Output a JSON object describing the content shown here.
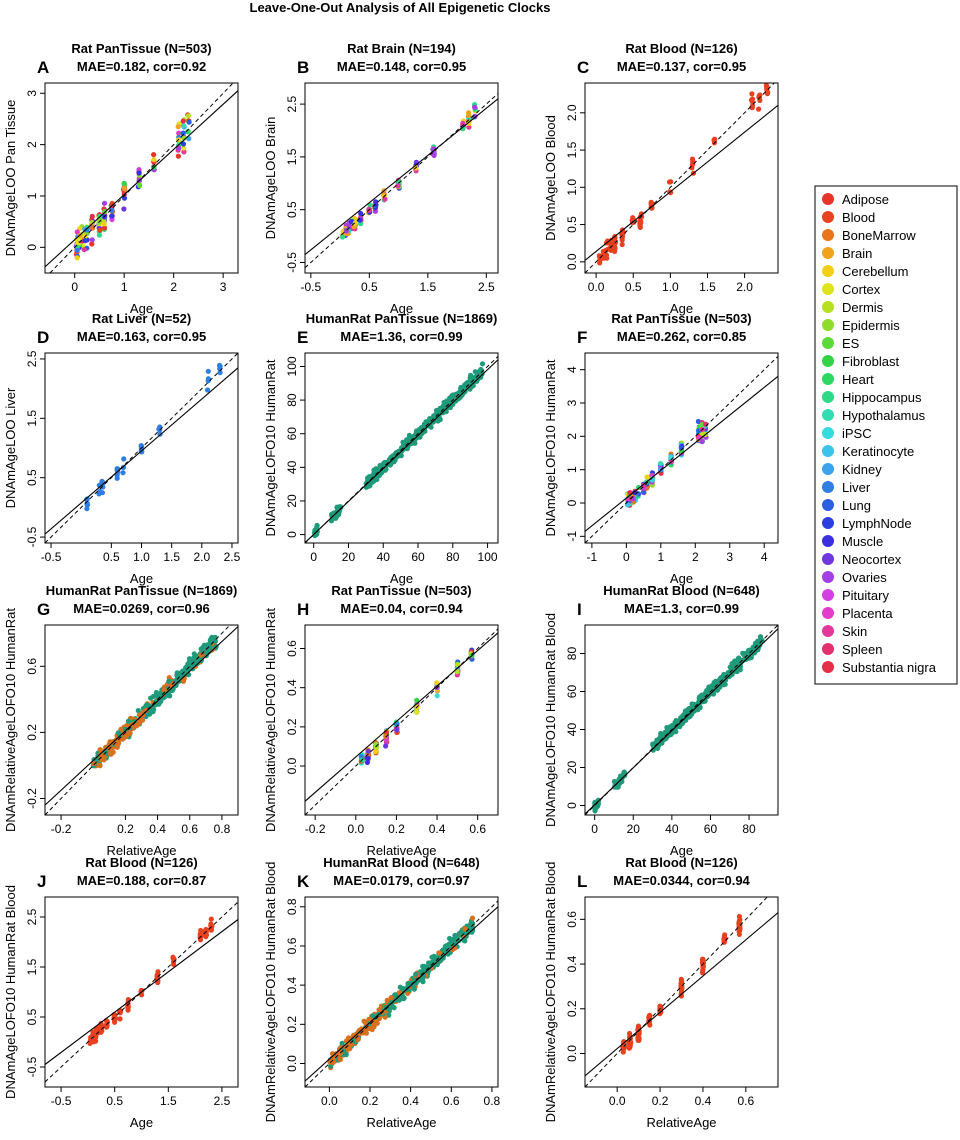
{
  "figure_title": "Leave-One-Out Analysis of All Epigenetic Clocks",
  "legend": {
    "items": [
      {
        "label": "Adipose",
        "color": "#e8352a"
      },
      {
        "label": "Blood",
        "color": "#e8411f"
      },
      {
        "label": "BoneMarrow",
        "color": "#e8751a"
      },
      {
        "label": "Brain",
        "color": "#f0a21c"
      },
      {
        "label": "Cerebellum",
        "color": "#f2d01a"
      },
      {
        "label": "Cortex",
        "color": "#dfe41c"
      },
      {
        "label": "Dermis",
        "color": "#b7e01e"
      },
      {
        "label": "Epidermis",
        "color": "#8fdc2c"
      },
      {
        "label": "ES",
        "color": "#5ed93a"
      },
      {
        "label": "Fibroblast",
        "color": "#35d247"
      },
      {
        "label": "Heart",
        "color": "#2bd760"
      },
      {
        "label": "Hippocampus",
        "color": "#2ed886"
      },
      {
        "label": "Hypothalamus",
        "color": "#33ddb2"
      },
      {
        "label": "iPSC",
        "color": "#38dbdd"
      },
      {
        "label": "Keratinocyte",
        "color": "#3bc3ea"
      },
      {
        "label": "Kidney",
        "color": "#3aa3eb"
      },
      {
        "label": "Liver",
        "color": "#2f7ee2"
      },
      {
        "label": "Lung",
        "color": "#2b5ee0"
      },
      {
        "label": "LymphNode",
        "color": "#2d3fdf"
      },
      {
        "label": "Muscle",
        "color": "#3b2fe0"
      },
      {
        "label": "Neocortex",
        "color": "#7036e0"
      },
      {
        "label": "Ovaries",
        "color": "#a33fe3"
      },
      {
        "label": "Pituitary",
        "color": "#d23ee2"
      },
      {
        "label": "Placenta",
        "color": "#e23cc8"
      },
      {
        "label": "Skin",
        "color": "#e2389a"
      },
      {
        "label": "Spleen",
        "color": "#e4306e"
      },
      {
        "label": "Substantia nigra",
        "color": "#e42f49"
      }
    ]
  },
  "chart_data": [
    {
      "letter": "A",
      "type": "scatter",
      "title": "Rat PanTissue (N=503)",
      "subtitle": "MAE=0.182, cor=0.92",
      "xlabel": "Age",
      "ylabel": "DNAmAgeLOO Pan Tissue",
      "xlim": [
        -0.6,
        3.3
      ],
      "ylim": [
        -0.5,
        3.2
      ],
      "xticks": [
        "0",
        "1",
        "2",
        "3"
      ],
      "yticks": [
        "0",
        "1",
        "2",
        "3"
      ],
      "fit": [
        [
          -0.6,
          -0.38
        ],
        [
          3.3,
          3.05
        ]
      ],
      "points": "rat",
      "palette": "multi",
      "lo_ref": 0.28
    },
    {
      "letter": "B",
      "type": "scatter",
      "title": "Rat Brain (N=194)",
      "subtitle": "MAE=0.148, cor=0.95",
      "xlabel": "Age",
      "ylabel": "DNAmAgeLOO Brain",
      "xlim": [
        -0.6,
        2.7
      ],
      "ylim": [
        -0.7,
        2.9
      ],
      "xticks": [
        "-0.5",
        "0.5",
        "1.5",
        "2.5"
      ],
      "yticks": [
        "-0.5",
        "0.5",
        "1.5",
        "2.5"
      ],
      "fit": [
        [
          -0.6,
          -0.35
        ],
        [
          2.7,
          2.6
        ]
      ],
      "points": "rat",
      "palette": "brain",
      "lo_ref": 0.3
    },
    {
      "letter": "C",
      "type": "scatter",
      "title": "Rat Blood (N=126)",
      "subtitle": "MAE=0.137, cor=0.95",
      "xlabel": "Age",
      "ylabel": "DNAmAgeLOO Blood",
      "xlim": [
        -0.15,
        2.45
      ],
      "ylim": [
        -0.15,
        2.4
      ],
      "xticks": [
        "0.0",
        "0.5",
        "1.0",
        "1.5",
        "2.0"
      ],
      "yticks": [
        "0.0",
        "0.5",
        "1.0",
        "1.5",
        "2.0"
      ],
      "fit": [
        [
          -0.15,
          0.02
        ],
        [
          2.45,
          2.1
        ]
      ],
      "points": "rat",
      "palette": "blood",
      "lo_ref": 0.15
    },
    {
      "letter": "D",
      "type": "scatter",
      "title": "Rat Liver (N=52)",
      "subtitle": "MAE=0.163, cor=0.95",
      "xlabel": "Age",
      "ylabel": "DNAmAgeLOO Liver",
      "xlim": [
        -0.6,
        2.6
      ],
      "ylim": [
        -0.6,
        2.6
      ],
      "xticks": [
        "-0.5",
        "0.5",
        "1.0",
        "1.5",
        "2.0",
        "2.5"
      ],
      "yticks": [
        "-0.5",
        "0.5",
        "1.5",
        "2.5"
      ],
      "fit": [
        [
          -0.6,
          -0.45
        ],
        [
          2.6,
          2.35
        ]
      ],
      "points": "rat",
      "palette": "liver",
      "lo_ref": 0.2
    },
    {
      "letter": "E",
      "type": "scatter",
      "title": "HumanRat PanTissue (N=1869)",
      "subtitle": "MAE=1.36, cor=0.99",
      "xlabel": "Age",
      "ylabel": "DNAmAgeLOFO10 HumanRat",
      "xlim": [
        -5,
        106
      ],
      "ylim": [
        -5,
        108
      ],
      "xticks": [
        "0",
        "20",
        "40",
        "60",
        "80",
        "100"
      ],
      "yticks": [
        "0",
        "20",
        "40",
        "60",
        "80",
        "100"
      ],
      "fit": [
        [
          -5,
          -4.8
        ],
        [
          106,
          104
        ]
      ],
      "points": "human",
      "palette": "teal",
      "lo_ref": 4
    },
    {
      "letter": "F",
      "type": "scatter",
      "title": "Rat PanTissue (N=503)",
      "subtitle": "MAE=0.262, cor=0.85",
      "xlabel": "Age",
      "ylabel": "DNAmAgeLOFO10 HumanRat",
      "xlim": [
        -1.2,
        4.4
      ],
      "ylim": [
        -1.2,
        4.5
      ],
      "xticks": [
        "-1",
        "0",
        "1",
        "2",
        "3",
        "4"
      ],
      "yticks": [
        "-1",
        "0",
        "1",
        "2",
        "3",
        "4"
      ],
      "fit": [
        [
          -1.2,
          -0.85
        ],
        [
          4.4,
          3.8
        ]
      ],
      "points": "rat",
      "palette": "multi",
      "lo_ref": 0.45
    },
    {
      "letter": "G",
      "type": "scatter",
      "title": "HumanRat PanTissue (N=1869)",
      "subtitle": "MAE=0.0269, cor=0.96",
      "xlabel": "RelativeAge",
      "ylabel": "DNAmRelativeAgeLOFO10 HumanRat",
      "xlim": [
        -0.3,
        0.9
      ],
      "ylim": [
        -0.3,
        0.85
      ],
      "xticks": [
        "-0.2",
        "0.2",
        "0.4",
        "0.6",
        "0.8"
      ],
      "yticks": [
        "-0.2",
        "0.2",
        "0.6"
      ],
      "fit": [
        [
          -0.3,
          -0.24
        ],
        [
          0.9,
          0.84
        ]
      ],
      "points": "rel",
      "palette": "orange-teal",
      "lo_ref": 0.05
    },
    {
      "letter": "H",
      "type": "scatter",
      "title": "Rat PanTissue (N=503)",
      "subtitle": "MAE=0.04, cor=0.94",
      "xlabel": "RelativeAge",
      "ylabel": "DNAmRelativeAgeLOFO10 HumanRat",
      "xlim": [
        -0.25,
        0.7
      ],
      "ylim": [
        -0.25,
        0.72
      ],
      "xticks": [
        "-0.2",
        "0.0",
        "0.2",
        "0.4",
        "0.6"
      ],
      "yticks": [
        "0.0",
        "0.2",
        "0.4",
        "0.6"
      ],
      "fit": [
        [
          -0.25,
          -0.18
        ],
        [
          0.7,
          0.68
        ]
      ],
      "points": "relrat",
      "palette": "multi",
      "lo_ref": 0.06
    },
    {
      "letter": "I",
      "type": "scatter",
      "title": "HumanRat Blood (N=648)",
      "subtitle": "MAE=1.3, cor=0.99",
      "xlabel": "Age",
      "ylabel": "DNAmAgeLOFO10 HumanRat Blood",
      "xlim": [
        -5,
        95
      ],
      "ylim": [
        -5,
        95
      ],
      "xticks": [
        "0",
        "20",
        "40",
        "60",
        "80"
      ],
      "yticks": [
        "0",
        "20",
        "40",
        "60",
        "80"
      ],
      "fit": [
        [
          -5,
          -4.5
        ],
        [
          95,
          93
        ]
      ],
      "points": "human",
      "palette": "teal",
      "lo_ref": 3
    },
    {
      "letter": "J",
      "type": "scatter",
      "title": "Rat Blood (N=126)",
      "subtitle": "MAE=0.188, cor=0.87",
      "xlabel": "Age",
      "ylabel": "DNAmAgeLOFO10 HumanRat Blood",
      "xlim": [
        -0.8,
        2.8
      ],
      "ylim": [
        -0.9,
        2.9
      ],
      "xticks": [
        "-0.5",
        "0.5",
        "1.5",
        "2.5"
      ],
      "yticks": [
        "-0.5",
        "0.5",
        "1.5",
        "2.5"
      ],
      "fit": [
        [
          -0.8,
          -0.45
        ],
        [
          2.8,
          2.45
        ]
      ],
      "points": "rat",
      "palette": "blood",
      "lo_ref": 0.3
    },
    {
      "letter": "K",
      "type": "scatter",
      "title": "HumanRat Blood (N=648)",
      "subtitle": "MAE=0.0179, cor=0.97",
      "xlabel": "RelativeAge",
      "ylabel": "DNAmRelativeAgeLOFO10 HumanRat Blood",
      "xlim": [
        -0.12,
        0.83
      ],
      "ylim": [
        -0.12,
        0.85
      ],
      "xticks": [
        "0.0",
        "0.2",
        "0.4",
        "0.6",
        "0.8"
      ],
      "yticks": [
        "0.0",
        "0.2",
        "0.4",
        "0.6",
        "0.8"
      ],
      "fit": [
        [
          -0.12,
          -0.09
        ],
        [
          0.83,
          0.8
        ]
      ],
      "points": "rel",
      "palette": "orange-teal",
      "lo_ref": 0.04
    },
    {
      "letter": "L",
      "type": "scatter",
      "title": "Rat Blood (N=126)",
      "subtitle": "MAE=0.0344, cor=0.94",
      "xlabel": "RelativeAge",
      "ylabel": "DNAmRelativeAgeLOFO10 HumanRat Blood",
      "xlim": [
        -0.15,
        0.75
      ],
      "ylim": [
        -0.15,
        0.7
      ],
      "xticks": [
        "0.0",
        "0.2",
        "0.4",
        "0.6"
      ],
      "yticks": [
        "0.0",
        "0.2",
        "0.4",
        "0.6"
      ],
      "fit": [
        [
          -0.15,
          -0.1
        ],
        [
          0.75,
          0.63
        ]
      ],
      "points": "relrat",
      "palette": "blood",
      "lo_ref": 0.05
    }
  ]
}
